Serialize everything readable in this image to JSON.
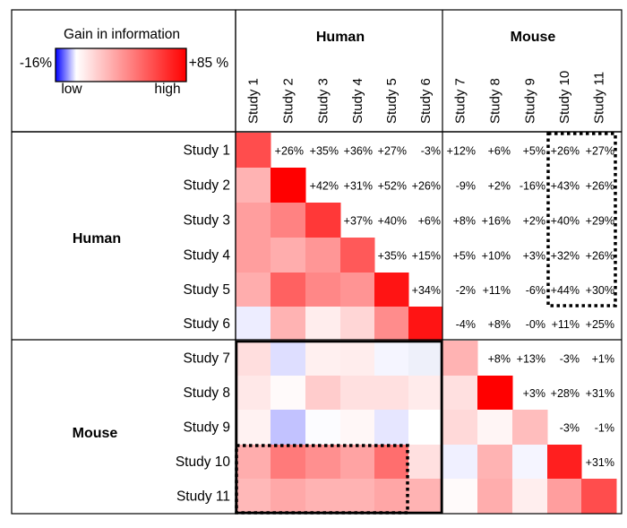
{
  "chart_data": {
    "type": "heatmap",
    "title": "",
    "legend": {
      "title": "Gain in information",
      "min_label": "-16%",
      "max_label": "+85 %",
      "low_label": "low",
      "high_label": "high",
      "min_value": -16,
      "max_value": 85,
      "low_color": "#0000ff",
      "mid_color": "#ffffff",
      "high_color": "#ff0000"
    },
    "groups": [
      {
        "name": "Human",
        "studies": [
          0,
          1,
          2,
          3,
          4,
          5
        ]
      },
      {
        "name": "Mouse",
        "studies": [
          6,
          7,
          8,
          9,
          10
        ]
      }
    ],
    "studies": [
      "Study 1",
      "Study 2",
      "Study 3",
      "Study 4",
      "Study 5",
      "Study 6",
      "Study 7",
      "Study 8",
      "Study 9",
      "Study 10",
      "Study 11"
    ],
    "upper_labels": [
      [
        null,
        "+26%",
        "+35%",
        "+36%",
        "+27%",
        "-3%",
        "+12%",
        "+6%",
        "+5%",
        "+26%",
        "+27%"
      ],
      [
        null,
        null,
        "+42%",
        "+31%",
        "+52%",
        "+26%",
        "-9%",
        "+2%",
        "-16%",
        "+43%",
        "+26%"
      ],
      [
        null,
        null,
        null,
        "+37%",
        "+40%",
        "+6%",
        "+8%",
        "+16%",
        "+2%",
        "+40%",
        "+29%"
      ],
      [
        null,
        null,
        null,
        null,
        "+35%",
        "+15%",
        "+5%",
        "+10%",
        "+3%",
        "+32%",
        "+26%"
      ],
      [
        null,
        null,
        null,
        null,
        null,
        "+34%",
        "-2%",
        "+11%",
        "-6%",
        "+44%",
        "+30%"
      ],
      [
        null,
        null,
        null,
        null,
        null,
        null,
        "-4%",
        "+8%",
        "-0%",
        "+11%",
        "+25%"
      ],
      [
        null,
        null,
        null,
        null,
        null,
        null,
        null,
        "+8%",
        "+13%",
        "-3%",
        "+1%"
      ],
      [
        null,
        null,
        null,
        null,
        null,
        null,
        null,
        null,
        "+3%",
        "+28%",
        "+31%"
      ],
      [
        null,
        null,
        null,
        null,
        null,
        null,
        null,
        null,
        null,
        "-3%",
        "-1%"
      ],
      [
        null,
        null,
        null,
        null,
        null,
        null,
        null,
        null,
        null,
        null,
        "+31%"
      ],
      [
        null,
        null,
        null,
        null,
        null,
        null,
        null,
        null,
        null,
        null,
        null
      ]
    ],
    "colors": [
      [
        "#ff4d4d",
        null,
        null,
        null,
        null,
        null,
        null,
        null,
        null,
        null,
        null
      ],
      [
        "#ffb3b3",
        "#ff0000",
        null,
        null,
        null,
        null,
        null,
        null,
        null,
        null,
        null
      ],
      [
        "#ff9e9e",
        "#ff8282",
        "#ff3838",
        null,
        null,
        null,
        null,
        null,
        null,
        null,
        null
      ],
      [
        "#ff9e9e",
        "#ffadad",
        "#ff9696",
        "#ff5959",
        null,
        null,
        null,
        null,
        null,
        null,
        null
      ],
      [
        "#ffadad",
        "#ff6161",
        "#ff8787",
        "#ff9494",
        "#ff1414",
        null,
        null,
        null,
        null,
        null,
        null
      ],
      [
        "#ededff",
        "#ffb3b3",
        "#ffeded",
        "#ffd6d6",
        "#ff8c8c",
        "#ff1414",
        null,
        null,
        null,
        null,
        null
      ],
      [
        "#ffdede",
        "#dedeff",
        "#fff0f0",
        "#ffeded",
        "#f5f5ff",
        "#eef0fa",
        "#ffb3b3",
        null,
        null,
        null,
        null
      ],
      [
        "#ffe8e8",
        "#fffafa",
        "#ffcccc",
        "#ffe0e0",
        "#ffe0e0",
        "#ffebeb",
        "#ffe0e0",
        "#ff0000",
        null,
        null,
        null
      ],
      [
        "#fff2f2",
        "#c2c2ff",
        "#fcfcff",
        "#fff7f7",
        "#e6e6ff",
        "#ffffff",
        "#ffd9d9",
        "#fff5f5",
        "#ffbdbd",
        null,
        null
      ],
      [
        "#ffadad",
        "#ff7a7a",
        "#ff8f8f",
        "#ffa3a3",
        "#ff6e6e",
        "#ffe0e0",
        "#f0f0ff",
        "#ffb3b3",
        "#f5f5ff",
        "#ff1f1f",
        null
      ],
      [
        "#ffb8b8",
        "#ffa8a8",
        "#ffb3b3",
        "#ffb3b3",
        "#ffa6a6",
        "#ffb3b3",
        "#fffafa",
        "#ffadad",
        "#ffeeee",
        "#ff9e9e",
        "#ff4d4d"
      ]
    ],
    "highlight_boxes": [
      {
        "rows": [
          0,
          4
        ],
        "cols": [
          9,
          10
        ],
        "style": "dotted"
      },
      {
        "rows": [
          9,
          10
        ],
        "cols": [
          0,
          4
        ],
        "style": "dotted"
      },
      {
        "rows": [
          6,
          10
        ],
        "cols": [
          0,
          5
        ],
        "style": "solid"
      }
    ]
  }
}
